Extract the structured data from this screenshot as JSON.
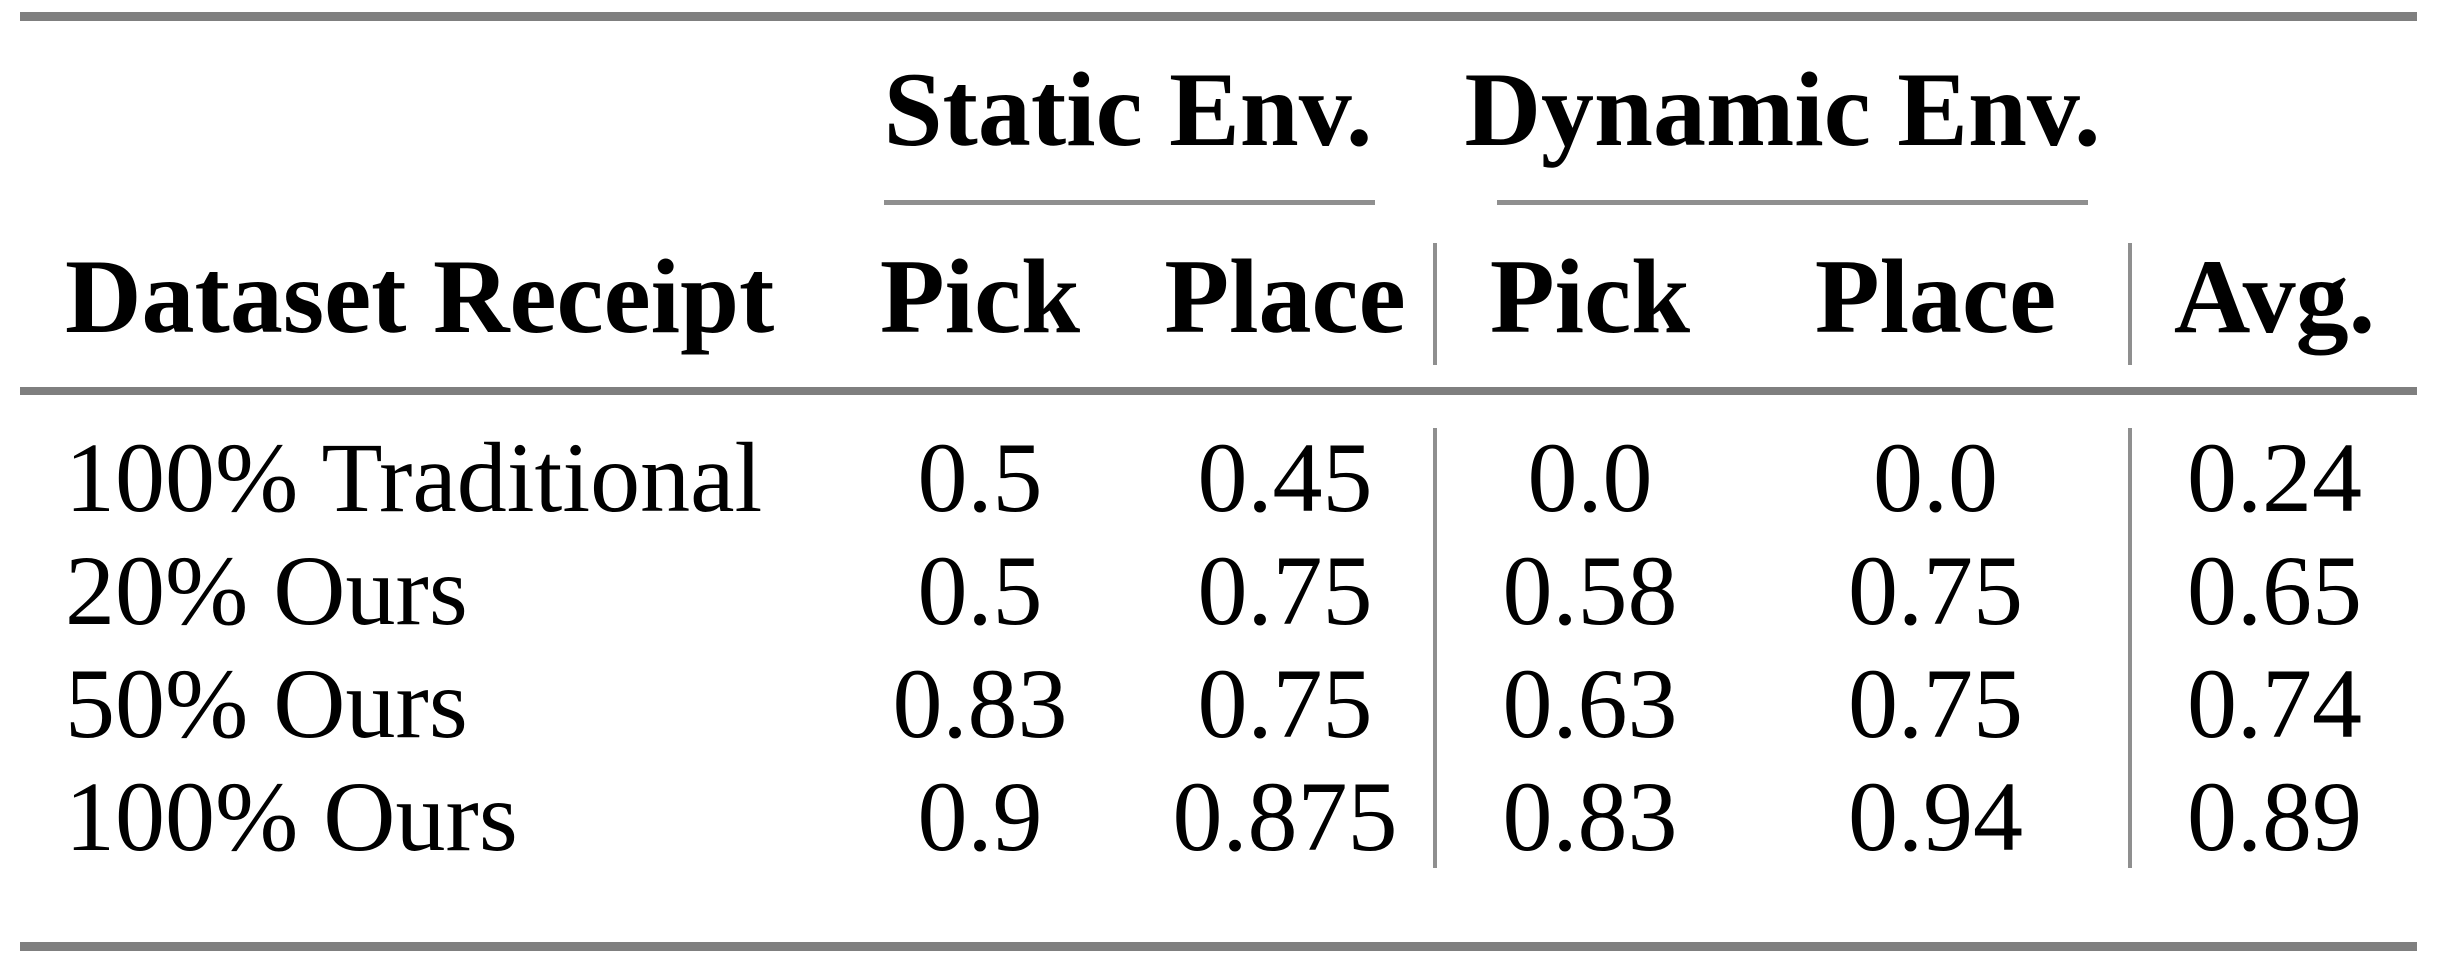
{
  "table": {
    "col_groups": [
      {
        "label": "Static Env."
      },
      {
        "label": "Dynamic Env."
      }
    ],
    "headers": {
      "dataset": "Dataset Receipt",
      "static_pick": "Pick",
      "static_place": "Place",
      "dynamic_pick": "Pick",
      "dynamic_place": "Place",
      "avg": "Avg."
    },
    "rows": [
      {
        "dataset": "100% Traditional",
        "static_pick": "0.5",
        "static_place": "0.45",
        "dynamic_pick": "0.0",
        "dynamic_place": "0.0",
        "avg": "0.24"
      },
      {
        "dataset": "20% Ours",
        "static_pick": "0.5",
        "static_place": "0.75",
        "dynamic_pick": "0.58",
        "dynamic_place": "0.75",
        "avg": "0.65"
      },
      {
        "dataset": "50% Ours",
        "static_pick": "0.83",
        "static_place": "0.75",
        "dynamic_pick": "0.63",
        "dynamic_place": "0.75",
        "avg": "0.74"
      },
      {
        "dataset": "100% Ours",
        "static_pick": "0.9",
        "static_place": "0.875",
        "dynamic_pick": "0.83",
        "dynamic_place": "0.94",
        "avg": "0.89"
      }
    ],
    "colors": {
      "rule_gray": "#7f7f7f",
      "thin_rule_gray": "#8f8f8f",
      "text": "#000000",
      "background": "#ffffff"
    }
  },
  "chart_data": {
    "type": "table",
    "column_groups": [
      "",
      "Static Env.",
      "Static Env.",
      "Dynamic Env.",
      "Dynamic Env.",
      ""
    ],
    "columns": [
      "Dataset Receipt",
      "Pick",
      "Place",
      "Pick",
      "Place",
      "Avg."
    ],
    "rows": [
      [
        "100% Traditional",
        0.5,
        0.45,
        0.0,
        0.0,
        0.24
      ],
      [
        "20% Ours",
        0.5,
        0.75,
        0.58,
        0.75,
        0.65
      ],
      [
        "50% Ours",
        0.83,
        0.75,
        0.63,
        0.75,
        0.74
      ],
      [
        "100% Ours",
        0.9,
        0.875,
        0.83,
        0.94,
        0.89
      ]
    ]
  }
}
